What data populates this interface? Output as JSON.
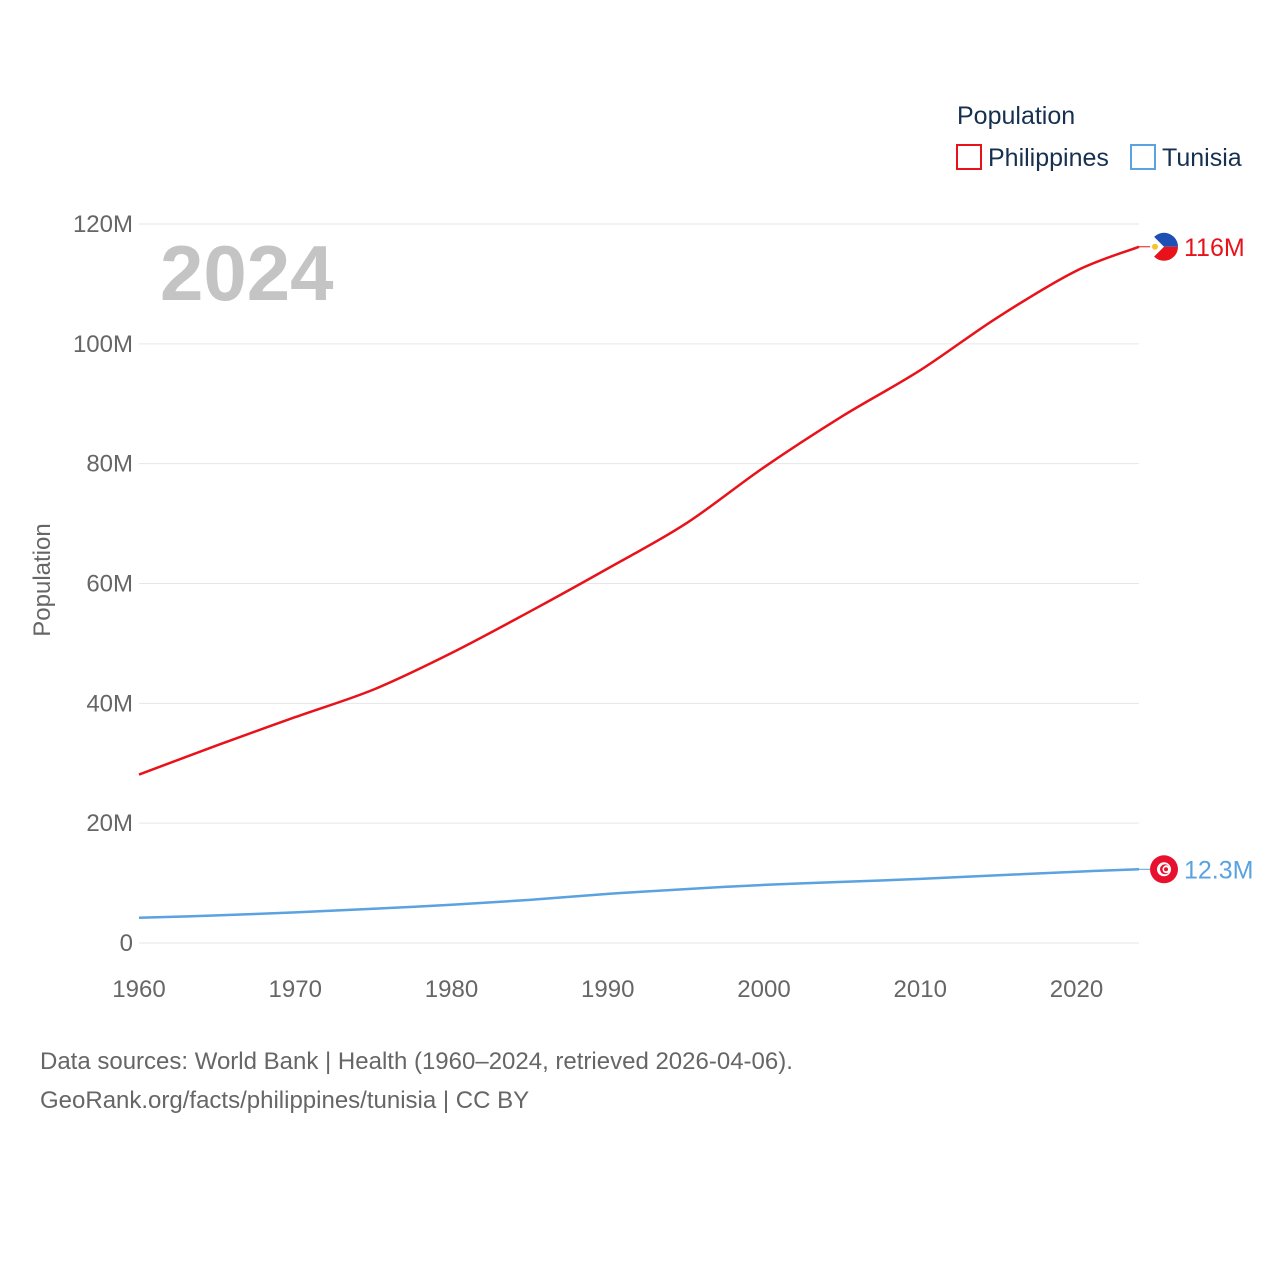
{
  "chart_data": {
    "type": "line",
    "year_label": "2024",
    "ylabel": "Population",
    "legend_title": "Population",
    "x_ticks": [
      "1960",
      "1970",
      "1980",
      "1990",
      "2000",
      "2010",
      "2020"
    ],
    "x_tick_values": [
      1960,
      1970,
      1980,
      1990,
      2000,
      2010,
      2020
    ],
    "y_ticks": [
      "0",
      "20M",
      "40M",
      "60M",
      "80M",
      "100M",
      "120M"
    ],
    "y_tick_values": [
      0,
      20000000,
      40000000,
      60000000,
      80000000,
      100000000,
      120000000
    ],
    "xlim": [
      1960,
      2024
    ],
    "ylim": [
      0,
      120000000
    ],
    "series": [
      {
        "name": "Philippines",
        "color": "#e8131a",
        "end_label": "116M",
        "flag": "philippines-flag",
        "x": [
          1960,
          1965,
          1970,
          1975,
          1980,
          1985,
          1990,
          1995,
          2000,
          2005,
          2010,
          2015,
          2020,
          2024
        ],
        "y": [
          28100000,
          33000000,
          37700000,
          42300000,
          48400000,
          55300000,
          62500000,
          70000000,
          79400000,
          87900000,
          95600000,
          104500000,
          112200000,
          116200000
        ]
      },
      {
        "name": "Tunisia",
        "color": "#5aa2e0",
        "end_label": "12.3M",
        "flag": "tunisia-flag",
        "x": [
          1960,
          1965,
          1970,
          1975,
          1980,
          1985,
          1990,
          1995,
          2000,
          2005,
          2010,
          2015,
          2020,
          2024
        ],
        "y": [
          4200000,
          4600000,
          5100000,
          5700000,
          6400000,
          7200000,
          8200000,
          9000000,
          9700000,
          10200000,
          10700000,
          11300000,
          11900000,
          12300000
        ]
      }
    ]
  },
  "source": {
    "line1": "Data sources: World Bank | Health (1960–2024, retrieved 2026-04-06).",
    "line2": "GeoRank.org/facts/philippines/tunisia | CC BY"
  }
}
